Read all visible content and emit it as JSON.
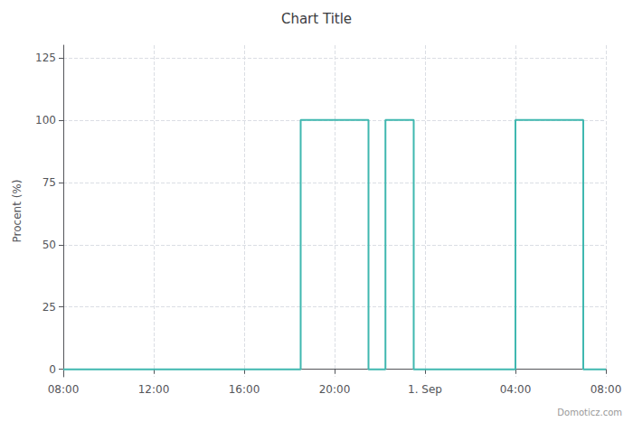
{
  "chart_data": {
    "type": "line",
    "title": "Chart Title",
    "ylabel": "Procent (%)",
    "x": [
      0,
      10.5,
      10.5,
      13.5,
      13.5,
      14.25,
      14.25,
      15.5,
      15.5,
      20.0,
      20.0,
      23.0,
      23.0,
      24.0
    ],
    "values": [
      0,
      0,
      100,
      100,
      0,
      0,
      100,
      100,
      0,
      0,
      100,
      100,
      0,
      0
    ],
    "color": "#40b8b0",
    "xlim": [
      0,
      24
    ],
    "xticks": [
      {
        "value": 0,
        "label": "08:00"
      },
      {
        "value": 4,
        "label": "12:00"
      },
      {
        "value": 8,
        "label": "16:00"
      },
      {
        "value": 12,
        "label": "20:00"
      },
      {
        "value": 16,
        "label": "1. Sep"
      },
      {
        "value": 20,
        "label": "04:00"
      },
      {
        "value": 24,
        "label": "08:00"
      }
    ],
    "ylim": [
      -3,
      130
    ],
    "yticks": [
      0,
      25,
      50,
      75,
      100,
      125
    ],
    "grid": true,
    "annotations": [
      "Domoticz.com"
    ]
  }
}
